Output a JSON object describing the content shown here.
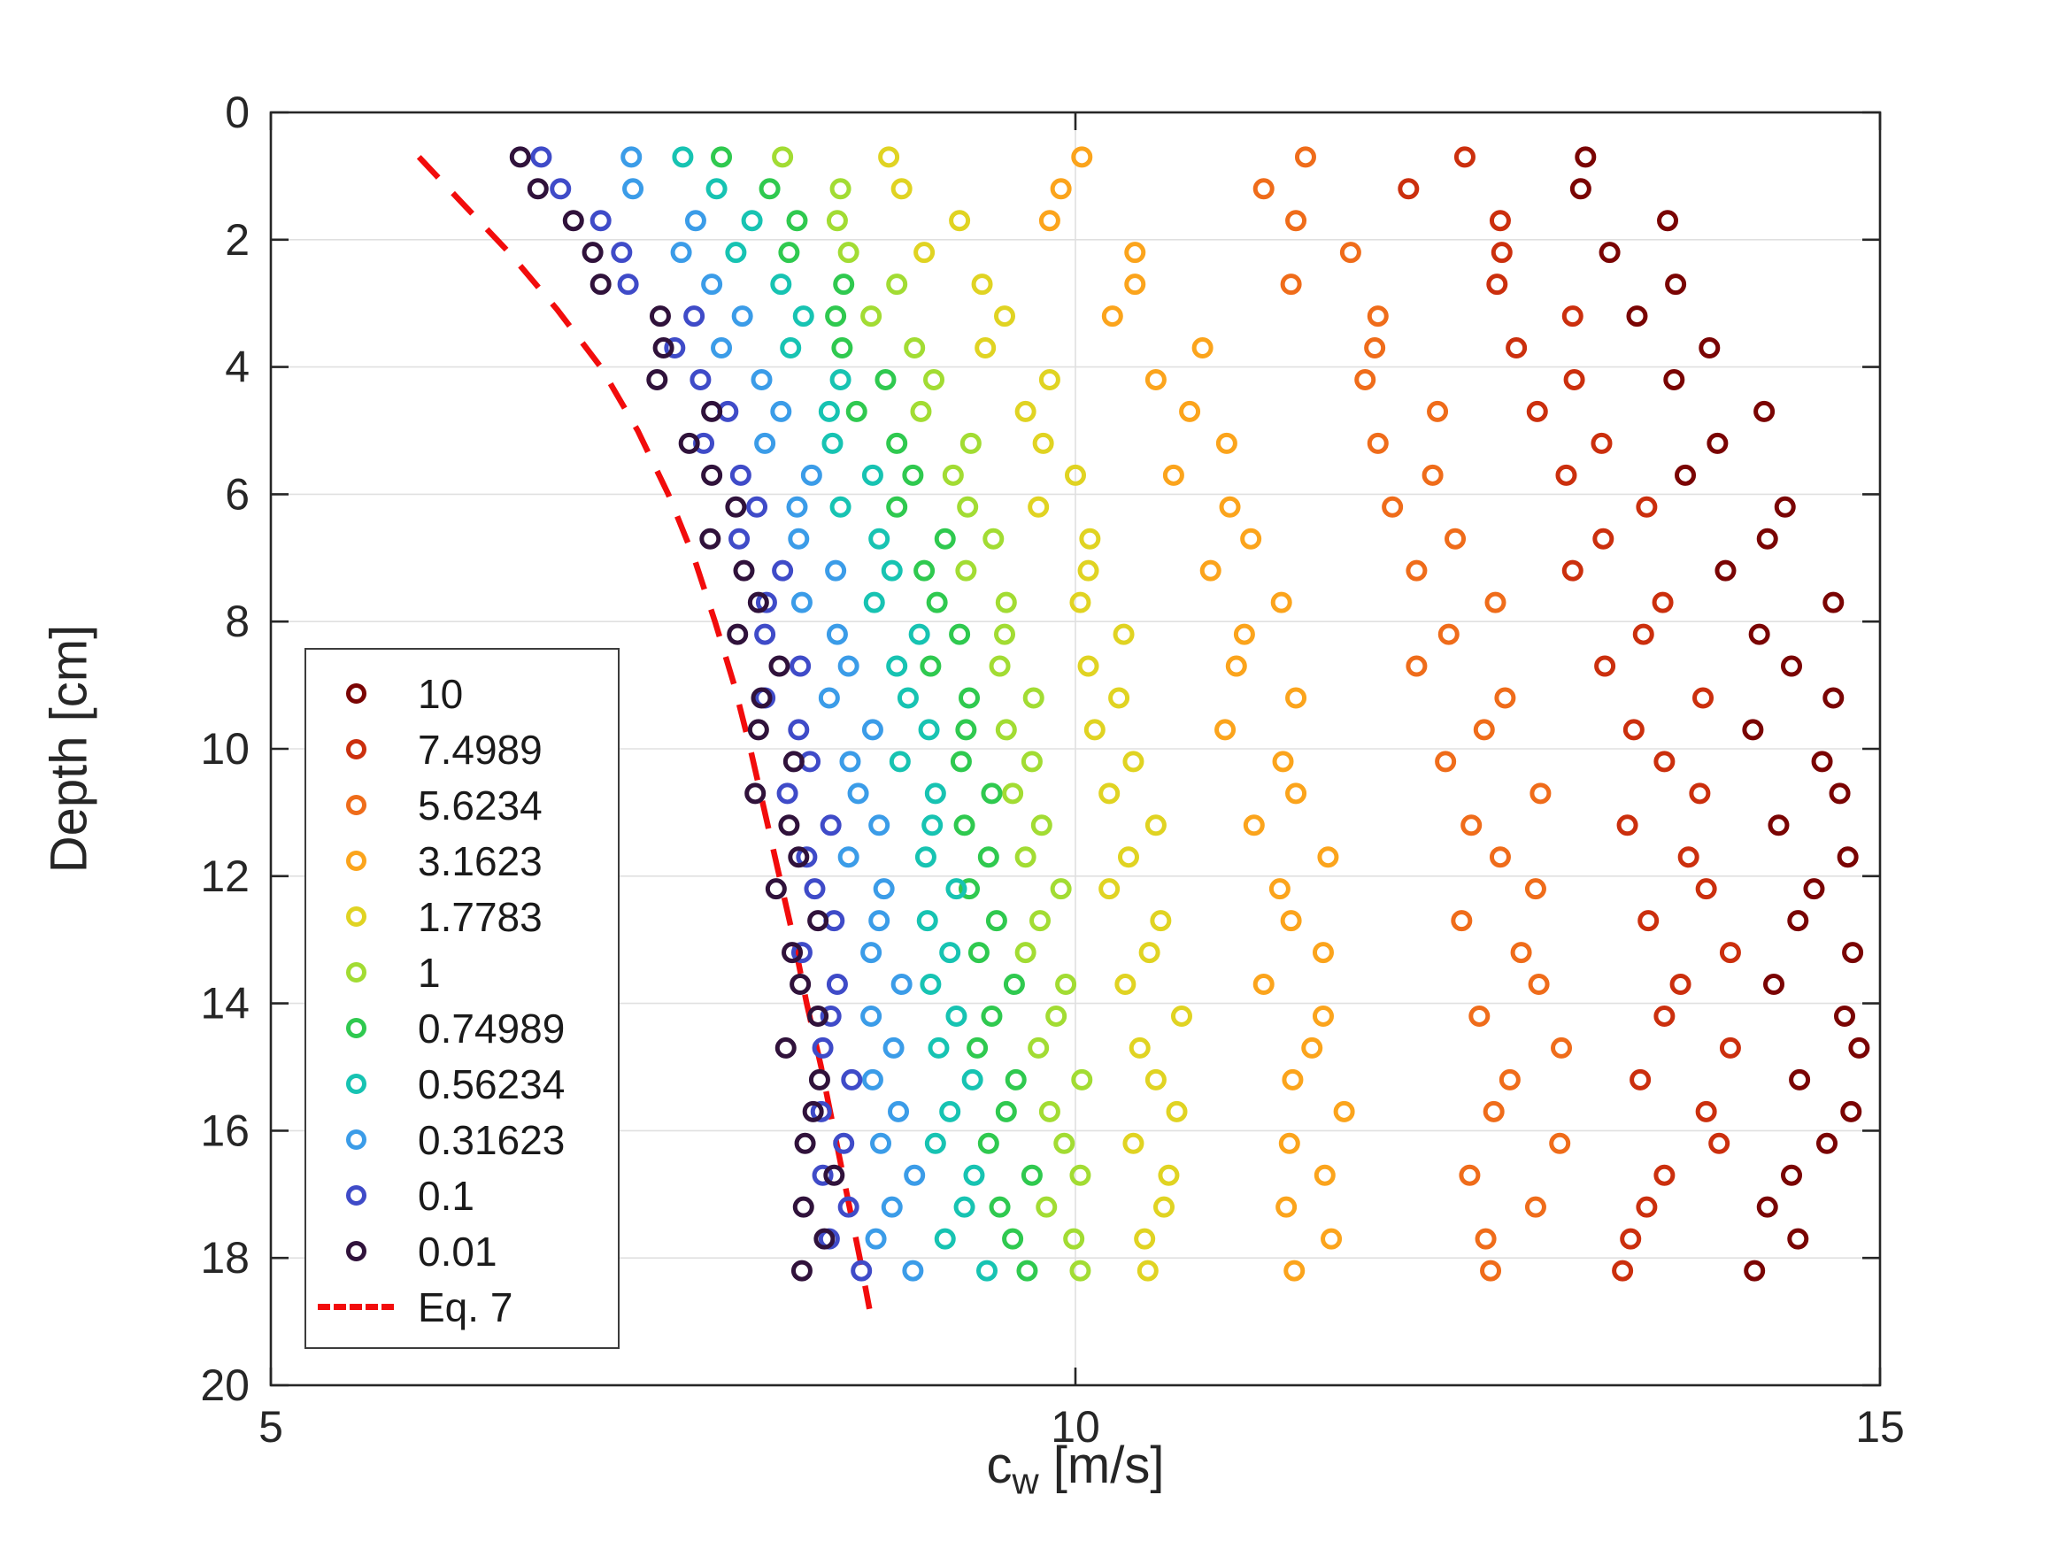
{
  "figure": {
    "background": "#ffffff",
    "axis_color": "#262626",
    "grid_color": "#e0e0e0"
  },
  "chart_data": {
    "type": "scatter",
    "title": "",
    "xlabel": "c_w [m/s]",
    "xlabel_main": "c",
    "xlabel_sub": "w",
    "xlabel_unit": " [m/s]",
    "ylabel": "Depth [cm]",
    "xlim": [
      5,
      15
    ],
    "ylim": [
      0,
      20
    ],
    "xticks": [
      5,
      10,
      15
    ],
    "yticks": [
      0,
      2,
      4,
      6,
      8,
      10,
      12,
      14,
      16,
      18,
      20
    ],
    "grid": true,
    "y_axis_reversed": true,
    "legend_position": "lower-left-inside",
    "depths": [
      0.7,
      1.2,
      1.7,
      2.2,
      2.7,
      3.2,
      3.7,
      4.2,
      4.7,
      5.2,
      5.7,
      6.2,
      6.7,
      7.2,
      7.7,
      8.2,
      8.7,
      9.2,
      9.7,
      10.2,
      10.7,
      11.2,
      11.7,
      12.2,
      12.7,
      13.2,
      13.7,
      14.2,
      14.7,
      15.2,
      15.7,
      16.2,
      16.7,
      17.2,
      17.7,
      18.2
    ],
    "series": [
      {
        "name": "10",
        "color": "#7a0403",
        "x": [
          13.17,
          13.14,
          13.68,
          13.32,
          13.73,
          13.49,
          13.94,
          13.72,
          14.28,
          13.99,
          13.79,
          14.41,
          14.3,
          14.04,
          14.71,
          14.25,
          14.45,
          14.71,
          14.21,
          14.64,
          14.75,
          14.37,
          14.8,
          14.59,
          14.49,
          14.83,
          14.34,
          14.78,
          14.87,
          14.5,
          14.82,
          14.67,
          14.45,
          14.3,
          14.49,
          14.22
        ]
      },
      {
        "name": "7.4989",
        "color": "#cb2f0d",
        "x": [
          12.42,
          12.07,
          12.64,
          12.65,
          12.62,
          13.09,
          12.74,
          13.1,
          12.87,
          13.27,
          13.05,
          13.55,
          13.28,
          13.09,
          13.65,
          13.53,
          13.29,
          13.9,
          13.47,
          13.66,
          13.88,
          13.43,
          13.81,
          13.92,
          13.56,
          14.07,
          13.76,
          13.66,
          14.07,
          13.51,
          13.92,
          14.0,
          13.66,
          13.55,
          13.45,
          13.4
        ]
      },
      {
        "name": "5.6234",
        "color": "#ef6c1a",
        "x": [
          11.43,
          11.17,
          11.37,
          11.71,
          11.34,
          11.88,
          11.86,
          11.8,
          12.25,
          11.88,
          12.22,
          11.97,
          12.36,
          12.12,
          12.61,
          12.32,
          12.12,
          12.67,
          12.54,
          12.3,
          12.89,
          12.46,
          12.64,
          12.86,
          12.4,
          12.77,
          12.88,
          12.51,
          13.02,
          12.7,
          12.6,
          13.01,
          12.45,
          12.86,
          12.55,
          12.58
        ]
      },
      {
        "name": "3.1623",
        "color": "#fba41c",
        "x": [
          10.04,
          9.91,
          9.84,
          10.37,
          10.37,
          10.23,
          10.79,
          10.5,
          10.71,
          10.94,
          10.61,
          10.96,
          11.09,
          10.84,
          11.28,
          11.05,
          11.0,
          11.37,
          10.93,
          11.29,
          11.37,
          11.11,
          11.57,
          11.27,
          11.34,
          11.54,
          11.17,
          11.54,
          11.47,
          11.35,
          11.67,
          11.33,
          11.55,
          11.31,
          11.59,
          11.36
        ]
      },
      {
        "name": "1.7783",
        "color": "#e0d322",
        "x": [
          8.84,
          8.92,
          9.28,
          9.06,
          9.42,
          9.56,
          9.44,
          9.84,
          9.69,
          9.8,
          10.0,
          9.77,
          10.09,
          10.08,
          10.03,
          10.3,
          10.08,
          10.27,
          10.12,
          10.36,
          10.21,
          10.5,
          10.33,
          10.21,
          10.53,
          10.46,
          10.31,
          10.66,
          10.4,
          10.5,
          10.63,
          10.36,
          10.58,
          10.55,
          10.43,
          10.45
        ]
      },
      {
        "name": "1",
        "color": "#a2dc33",
        "x": [
          8.18,
          8.54,
          8.52,
          8.59,
          8.89,
          8.73,
          9.0,
          9.12,
          9.04,
          9.35,
          9.24,
          9.33,
          9.49,
          9.32,
          9.57,
          9.56,
          9.53,
          9.74,
          9.57,
          9.73,
          9.61,
          9.79,
          9.69,
          9.91,
          9.78,
          9.69,
          9.94,
          9.88,
          9.77,
          10.04,
          9.84,
          9.93,
          10.03,
          9.82,
          9.99,
          10.03
        ]
      },
      {
        "name": "0.74989",
        "color": "#2fc94f",
        "x": [
          7.8,
          8.1,
          8.27,
          8.22,
          8.56,
          8.51,
          8.55,
          8.82,
          8.64,
          8.89,
          8.99,
          8.89,
          9.19,
          9.06,
          9.14,
          9.28,
          9.1,
          9.34,
          9.32,
          9.29,
          9.48,
          9.31,
          9.46,
          9.34,
          9.51,
          9.4,
          9.62,
          9.48,
          9.39,
          9.63,
          9.57,
          9.46,
          9.73,
          9.53,
          9.61,
          9.7
        ]
      },
      {
        "name": "0.56234",
        "color": "#17c3b2",
        "x": [
          7.56,
          7.77,
          7.99,
          7.89,
          8.17,
          8.31,
          8.23,
          8.54,
          8.47,
          8.49,
          8.74,
          8.54,
          8.78,
          8.86,
          8.75,
          9.03,
          8.89,
          8.96,
          9.09,
          8.91,
          9.13,
          9.11,
          9.07,
          9.26,
          9.08,
          9.22,
          9.1,
          9.26,
          9.15,
          9.36,
          9.22,
          9.13,
          9.37,
          9.31,
          9.19,
          9.45
        ]
      },
      {
        "name": "0.31623",
        "color": "#3b9ce8",
        "x": [
          7.24,
          7.25,
          7.64,
          7.55,
          7.74,
          7.93,
          7.8,
          8.05,
          8.17,
          8.07,
          8.36,
          8.27,
          8.28,
          8.51,
          8.3,
          8.52,
          8.59,
          8.47,
          8.74,
          8.6,
          8.65,
          8.78,
          8.59,
          8.81,
          8.78,
          8.73,
          8.92,
          8.73,
          8.87,
          8.74,
          8.9,
          8.79,
          9.0,
          8.86,
          8.76,
          8.99
        ]
      },
      {
        "name": "0.1",
        "color": "#3f4bc8",
        "x": [
          6.68,
          6.8,
          7.05,
          7.18,
          7.22,
          7.63,
          7.51,
          7.67,
          7.84,
          7.69,
          7.92,
          8.02,
          7.91,
          8.18,
          8.08,
          8.07,
          8.29,
          8.07,
          8.28,
          8.35,
          8.21,
          8.48,
          8.33,
          8.38,
          8.5,
          8.3,
          8.52,
          8.48,
          8.43,
          8.61,
          8.42,
          8.56,
          8.43,
          8.59,
          8.47,
          8.67
        ]
      },
      {
        "name": "0.01",
        "color": "#30123b",
        "x": [
          6.55,
          6.66,
          6.88,
          7.0,
          7.05,
          7.42,
          7.44,
          7.4,
          7.74,
          7.6,
          7.74,
          7.89,
          7.73,
          7.94,
          8.03,
          7.9,
          8.16,
          8.05,
          8.03,
          8.25,
          8.01,
          8.22,
          8.28,
          8.14,
          8.4,
          8.24,
          8.29,
          8.4,
          8.2,
          8.41,
          8.37,
          8.32,
          8.5,
          8.31,
          8.44,
          8.3
        ]
      }
    ],
    "eq7": {
      "label": "Eq. 7",
      "color": "#f20c0c",
      "style": "dashed",
      "points": [
        [
          5.92,
          0.7
        ],
        [
          6.18,
          1.4
        ],
        [
          6.48,
          2.2
        ],
        [
          6.78,
          3.1
        ],
        [
          7.05,
          4.0
        ],
        [
          7.28,
          5.0
        ],
        [
          7.47,
          6.0
        ],
        [
          7.63,
          7.0
        ],
        [
          7.76,
          8.0
        ],
        [
          7.88,
          9.0
        ],
        [
          7.98,
          10.0
        ],
        [
          8.07,
          11.0
        ],
        [
          8.16,
          12.0
        ],
        [
          8.25,
          13.0
        ],
        [
          8.33,
          14.0
        ],
        [
          8.42,
          15.0
        ],
        [
          8.5,
          16.0
        ],
        [
          8.58,
          17.0
        ],
        [
          8.66,
          18.0
        ],
        [
          8.72,
          18.8
        ]
      ]
    }
  }
}
